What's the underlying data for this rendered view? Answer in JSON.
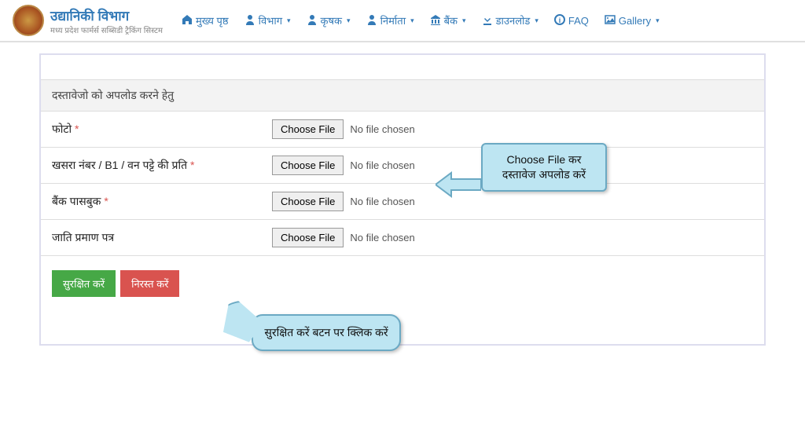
{
  "header": {
    "title": "उद्यानिकी विभाग",
    "subtitle": "मध्य प्रदेश फार्मर्स सब्सिडी ट्रैकिंग सिस्टम"
  },
  "nav": [
    {
      "label": "मुख्य पृष्ठ",
      "icon": "home",
      "dropdown": false
    },
    {
      "label": "विभाग",
      "icon": "user-tie",
      "dropdown": true
    },
    {
      "label": "कृषक",
      "icon": "user",
      "dropdown": true
    },
    {
      "label": "निर्माता",
      "icon": "user-alt",
      "dropdown": true
    },
    {
      "label": "बैंक",
      "icon": "bank",
      "dropdown": true
    },
    {
      "label": "डाउनलोड",
      "icon": "download",
      "dropdown": true
    },
    {
      "label": "FAQ",
      "icon": "info",
      "dropdown": false
    },
    {
      "label": "Gallery",
      "icon": "image",
      "dropdown": true
    }
  ],
  "section_title": "दस्तावेजो को अपलोड करने हेतु",
  "rows": [
    {
      "label": "फोटो",
      "required": true
    },
    {
      "label": "खसरा नंबर / B1 / वन पट्टे की प्रति",
      "required": true
    },
    {
      "label": "बैंक पासबुक",
      "required": true
    },
    {
      "label": "जाति प्रमाण पत्र",
      "required": false
    }
  ],
  "file_button_label": "Choose File",
  "file_status_text": "No file chosen",
  "buttons": {
    "save": "सुरक्षित करें",
    "cancel": "निरस्त करें"
  },
  "callout_right": "Choose File कर दस्तावेज अपलोड करें",
  "callout_bottom": "सुरक्षित करें बटन पर क्लिक करें",
  "colors": {
    "link": "#337ab7",
    "save": "#46a846",
    "cancel": "#d9534f",
    "callout_bg": "#bde5f2",
    "callout_border": "#6ba9c3"
  }
}
